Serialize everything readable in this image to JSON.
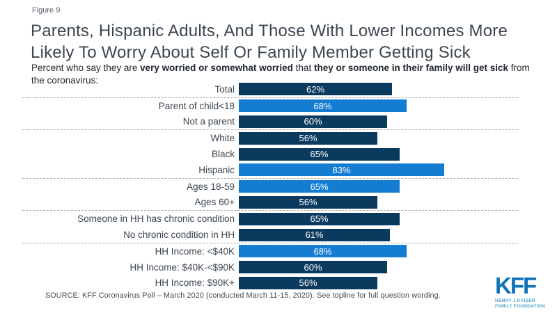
{
  "figure_label": "Figure 9",
  "title_line1": "Parents, Hispanic Adults, And Those With Lower Incomes More",
  "title_line2": "Likely To Worry About Self Or Family Member Getting Sick",
  "subtitle": {
    "part1": "Percent who say they are ",
    "bold1": "very worried or somewhat worried",
    "part2": " that ",
    "bold2": "they or someone in their family will get sick",
    "part3": " from the coronavirus:"
  },
  "chart_data": {
    "type": "bar",
    "orientation": "horizontal",
    "xlim": [
      0,
      100
    ],
    "value_suffix": "%",
    "grid": false,
    "legend": "none",
    "colors": {
      "default": "#0b3a5f",
      "highlight": "#147dd2"
    },
    "separators_after": [
      0,
      2,
      5,
      7,
      9
    ],
    "categories": [
      "Total",
      "Parent of child<18",
      "Not a parent",
      "White",
      "Black",
      "Hispanic",
      "Ages 18-59",
      "Ages 60+",
      "Someone in HH has chronic condition",
      "No chronic condition in HH",
      "HH Income: <$40K",
      "HH Income: $40K-<$90K",
      "HH Income: $90K+"
    ],
    "values": [
      62,
      68,
      60,
      56,
      65,
      83,
      65,
      56,
      65,
      61,
      68,
      60,
      56
    ],
    "rows": [
      {
        "label": "Total",
        "value": 62,
        "display": "62%",
        "highlight": false
      },
      {
        "label": "Parent of child<18",
        "value": 68,
        "display": "68%",
        "highlight": true
      },
      {
        "label": "Not a parent",
        "value": 60,
        "display": "60%",
        "highlight": false
      },
      {
        "label": "White",
        "value": 56,
        "display": "56%",
        "highlight": false
      },
      {
        "label": "Black",
        "value": 65,
        "display": "65%",
        "highlight": false
      },
      {
        "label": "Hispanic",
        "value": 83,
        "display": "83%",
        "highlight": true
      },
      {
        "label": "Ages 18-59",
        "value": 65,
        "display": "65%",
        "highlight": true
      },
      {
        "label": "Ages 60+",
        "value": 56,
        "display": "56%",
        "highlight": false
      },
      {
        "label": "Someone in HH has chronic condition",
        "value": 65,
        "display": "65%",
        "highlight": false
      },
      {
        "label": "No chronic condition in HH",
        "value": 61,
        "display": "61%",
        "highlight": false
      },
      {
        "label": "HH Income: <$40K",
        "value": 68,
        "display": "68%",
        "highlight": true
      },
      {
        "label": "HH Income: $40K-<$90K",
        "value": 60,
        "display": "60%",
        "highlight": false
      },
      {
        "label": "HH Income: $90K+",
        "value": 56,
        "display": "56%",
        "highlight": false
      }
    ]
  },
  "source": "SOURCE: KFF Coronavirus Poll – March 2020 (conducted March 11-15, 2020). See topline for full question wording.",
  "logo": {
    "text": "KFF",
    "sub_line1": "HENRY J KAISER",
    "sub_line2": "FAMILY FOUNDATION",
    "color": "#1173b9",
    "sub_color": "#54a4d4"
  }
}
